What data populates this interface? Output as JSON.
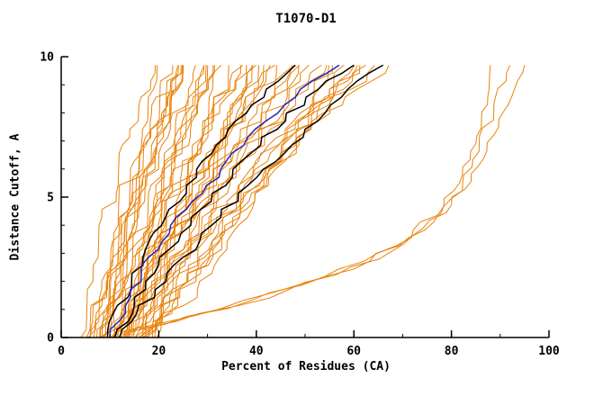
{
  "window": {
    "title": "T1070-D1"
  },
  "chart_data": {
    "type": "line",
    "title": "T1070-D1",
    "xlabel": "Percent of Residues (CA)",
    "ylabel": "Distance Cutoff, A",
    "xlim": [
      0,
      100
    ],
    "ylim": [
      0,
      10
    ],
    "x_major_ticks": [
      0,
      20,
      40,
      60,
      80,
      100
    ],
    "x_minor_step": 10,
    "y_major_ticks": [
      0,
      5,
      10
    ],
    "y_minor_step": 1,
    "grid": false,
    "legend": "none",
    "top_y": 9.7,
    "colors": {
      "bundle": "#e8830c",
      "highlight": "#000000",
      "reference": "#2323bb",
      "axis": "#000000"
    },
    "bundle": {
      "description": "dense family of model curves",
      "color": "#e8830c",
      "count": 46,
      "start_x_range": [
        5,
        19
      ],
      "end_x_range": [
        20,
        66
      ],
      "shape_power_range": [
        0.8,
        1.5
      ],
      "jitter": 2.4
    },
    "outlier_series": [
      {
        "name": "orange-outlier-1",
        "color": "#e8830c",
        "points": [
          [
            12,
            0.2
          ],
          [
            30,
            0.9
          ],
          [
            55,
            2.2
          ],
          [
            70,
            3.4
          ],
          [
            78,
            4.6
          ],
          [
            82,
            6.0
          ],
          [
            85,
            7.5
          ],
          [
            87,
            8.8
          ],
          [
            88,
            9.7
          ]
        ]
      },
      {
        "name": "orange-outlier-2",
        "color": "#e8830c",
        "points": [
          [
            14,
            0.2
          ],
          [
            35,
            1.1
          ],
          [
            60,
            2.5
          ],
          [
            74,
            3.8
          ],
          [
            81,
            5.2
          ],
          [
            86,
            6.8
          ],
          [
            89,
            8.2
          ],
          [
            91,
            9.2
          ],
          [
            92,
            9.7
          ]
        ]
      },
      {
        "name": "orange-outlier-3",
        "color": "#e8830c",
        "points": [
          [
            16,
            0.3
          ],
          [
            40,
            1.3
          ],
          [
            65,
            2.8
          ],
          [
            78,
            4.4
          ],
          [
            85,
            6.0
          ],
          [
            90,
            7.6
          ],
          [
            93,
            8.8
          ],
          [
            95,
            9.7
          ]
        ]
      }
    ],
    "highlight_series": [
      {
        "name": "black-1",
        "color": "#000000",
        "points": [
          [
            9.5,
            0
          ],
          [
            13,
            1.5
          ],
          [
            17,
            3.0
          ],
          [
            21,
            4.2
          ],
          [
            25,
            5.2
          ],
          [
            29,
            6.2
          ],
          [
            34,
            7.2
          ],
          [
            39,
            8.2
          ],
          [
            44,
            9.0
          ],
          [
            48,
            9.7
          ]
        ]
      },
      {
        "name": "black-2",
        "color": "#000000",
        "points": [
          [
            11,
            0
          ],
          [
            15,
            1.3
          ],
          [
            20,
            2.6
          ],
          [
            26,
            4.0
          ],
          [
            31,
            5.0
          ],
          [
            36,
            6.0
          ],
          [
            41,
            7.0
          ],
          [
            47,
            8.0
          ],
          [
            54,
            9.0
          ],
          [
            60,
            9.7
          ]
        ]
      },
      {
        "name": "black-3",
        "color": "#000000",
        "points": [
          [
            12,
            0
          ],
          [
            17,
            1.2
          ],
          [
            23,
            2.4
          ],
          [
            30,
            3.8
          ],
          [
            36,
            5.0
          ],
          [
            42,
            6.0
          ],
          [
            48,
            7.0
          ],
          [
            55,
            8.2
          ],
          [
            62,
            9.2
          ],
          [
            66,
            9.7
          ]
        ]
      },
      {
        "name": "blue-reference",
        "color": "#2323bb",
        "points": [
          [
            10,
            0
          ],
          [
            14,
            1.4
          ],
          [
            18,
            2.8
          ],
          [
            23,
            4.0
          ],
          [
            28,
            5.0
          ],
          [
            33,
            6.0
          ],
          [
            38,
            7.0
          ],
          [
            44,
            8.0
          ],
          [
            51,
            9.0
          ],
          [
            57,
            9.7
          ]
        ]
      }
    ]
  }
}
